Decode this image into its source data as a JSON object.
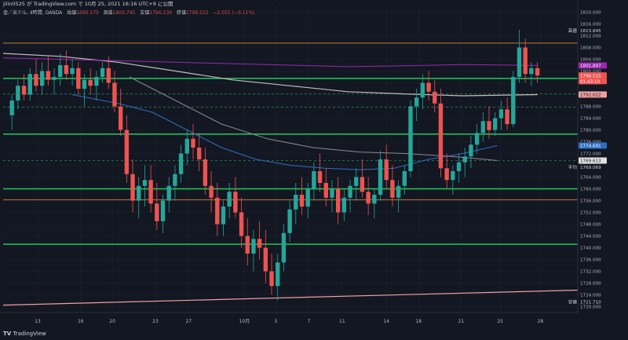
{
  "header": {
    "published": "jilin0525 が TradingView.com で 10月 25, 2021 16:16 UTC+9 に公開",
    "symbol": "金／米ドル, 4時間, OANDA",
    "open_label": "始値",
    "open": "1800.570",
    "high_label": "高値",
    "high": "1800.745",
    "low_label": "安値",
    "low": "1796.130",
    "close_label": "終値",
    "close": "1798.515",
    "change": "−2.055 (−0.11%)"
  },
  "footer": {
    "brand": "TradingView"
  },
  "colors": {
    "background": "#131722",
    "up": "#26a69a",
    "down": "#ef5350",
    "green_level": "#21c95c",
    "orange_level": "#c1773a",
    "purple_ma": "#9c27b0",
    "blue_ma": "#2f6fc2",
    "white_ma": "#c7bcbf",
    "trend": "#f0a0a0"
  },
  "chart_data": {
    "type": "candlestick",
    "symbol": "金／米ドル",
    "timeframe": "4時間",
    "ylim": [
      1718,
      1822
    ],
    "y_ticks": [
      "1820.000",
      "1816.000",
      "1812.000",
      "1808.000",
      "1804.000",
      "1800.000",
      "1796.000",
      "1792.000",
      "1788.000",
      "1784.000",
      "1780.000",
      "1776.000",
      "1772.000",
      "1768.000",
      "1764.000",
      "1760.000",
      "1756.000",
      "1752.000",
      "1748.000",
      "1744.000",
      "1740.000",
      "1736.000",
      "1732.000",
      "1728.000",
      "1724.000",
      "1720.000"
    ],
    "x_ticks": [
      {
        "label": "13",
        "pos": 0.06
      },
      {
        "label": "16",
        "pos": 0.135
      },
      {
        "label": "20",
        "pos": 0.19
      },
      {
        "label": "23",
        "pos": 0.265
      },
      {
        "label": "27",
        "pos": 0.323
      },
      {
        "label": "10月",
        "pos": 0.42
      },
      {
        "label": "5",
        "pos": 0.475
      },
      {
        "label": "7",
        "pos": 0.532
      },
      {
        "label": "11",
        "pos": 0.59
      },
      {
        "label": "14",
        "pos": 0.667
      },
      {
        "label": "18",
        "pos": 0.723
      },
      {
        "label": "21",
        "pos": 0.797
      },
      {
        "label": "25",
        "pos": 0.865
      },
      {
        "label": "28",
        "pos": 0.935
      }
    ],
    "price_tags": [
      {
        "label": "高値",
        "value": "1813.845",
        "y": 1813.845,
        "bg": "#131722",
        "fg": "#d1d4dc"
      },
      {
        "label": "",
        "value": "1801.897",
        "y": 1801.897,
        "bg": "#9c27b0",
        "fg": "#ffffff"
      },
      {
        "label": "",
        "value": "1798.515",
        "y": 1798.515,
        "bg": "#ef5350",
        "fg": "#ffffff"
      },
      {
        "label": "",
        "value": "01:43:10",
        "y": 1796.6,
        "bg": "#ef5350",
        "fg": "#ffffff"
      },
      {
        "label": "",
        "value": "1792.022",
        "y": 1792.022,
        "bg": "#f0a0a0",
        "fg": "#131722"
      },
      {
        "label": "",
        "value": "1774.691",
        "y": 1774.691,
        "bg": "#2f6fc2",
        "fg": "#ffffff"
      },
      {
        "label": "",
        "value": "1769.613",
        "y": 1769.613,
        "bg": "#e0e0e0",
        "fg": "#131722"
      },
      {
        "label": "平均",
        "value": "1769.069",
        "y": 1767.4,
        "bg": "#131722",
        "fg": "#d1d4dc"
      },
      {
        "label": "安値",
        "value": "1721.710",
        "y": 1721.71,
        "bg": "#131722",
        "fg": "#d1d4dc"
      }
    ],
    "levels": [
      {
        "y": 1809.5,
        "color": "#c1773a",
        "width": 1
      },
      {
        "y": 1797.5,
        "color": "#21c95c",
        "width": 1.5
      },
      {
        "y": 1792.3,
        "color": "#21c95c",
        "width": 0.6,
        "dash": "3,3"
      },
      {
        "y": 1787.7,
        "color": "#21c95c",
        "width": 0.6,
        "dash": "3,3"
      },
      {
        "y": 1778.6,
        "color": "#21c95c",
        "width": 1.5
      },
      {
        "y": 1769.6,
        "color": "#21c95c",
        "width": 0.6,
        "dash": "3,3"
      },
      {
        "y": 1760.0,
        "color": "#21c95c",
        "width": 1.5
      },
      {
        "y": 1756.3,
        "color": "#c1773a",
        "width": 1
      },
      {
        "y": 1741.2,
        "color": "#21c95c",
        "width": 1.5
      }
    ],
    "trendline": {
      "x0": 0.0,
      "y0": 1720.5,
      "x1": 1.0,
      "y1": 1725.6
    },
    "ma_purple": [
      [
        0.0,
        1804.5
      ],
      [
        0.1,
        1804
      ],
      [
        0.2,
        1803.5
      ],
      [
        0.3,
        1803
      ],
      [
        0.4,
        1802.5
      ],
      [
        0.5,
        1802
      ],
      [
        0.6,
        1801.5
      ],
      [
        0.7,
        1801.8
      ],
      [
        0.8,
        1802.2
      ],
      [
        0.93,
        1801.9
      ]
    ],
    "ma_white": [
      [
        0.0,
        1806
      ],
      [
        0.1,
        1805
      ],
      [
        0.2,
        1803
      ],
      [
        0.3,
        1800
      ],
      [
        0.4,
        1797
      ],
      [
        0.5,
        1795
      ],
      [
        0.6,
        1793
      ],
      [
        0.7,
        1792.2
      ],
      [
        0.8,
        1791.6
      ],
      [
        0.93,
        1792.0
      ]
    ],
    "ma_blue": [
      [
        0.12,
        1792
      ],
      [
        0.2,
        1789
      ],
      [
        0.26,
        1786
      ],
      [
        0.32,
        1780
      ],
      [
        0.38,
        1774
      ],
      [
        0.44,
        1770
      ],
      [
        0.5,
        1768
      ],
      [
        0.56,
        1767
      ],
      [
        0.62,
        1766.5
      ],
      [
        0.68,
        1767
      ],
      [
        0.74,
        1770
      ],
      [
        0.8,
        1772
      ],
      [
        0.86,
        1774.7
      ]
    ],
    "ma_white2": [
      [
        0.22,
        1798
      ],
      [
        0.3,
        1790
      ],
      [
        0.38,
        1782
      ],
      [
        0.46,
        1777
      ],
      [
        0.54,
        1774
      ],
      [
        0.62,
        1772.5
      ],
      [
        0.7,
        1772
      ],
      [
        0.78,
        1771
      ],
      [
        0.84,
        1770
      ],
      [
        0.86,
        1769.6
      ]
    ],
    "candles": [
      [
        1785,
        1792,
        1780,
        1790
      ],
      [
        1790,
        1797,
        1787,
        1795
      ],
      [
        1795,
        1799,
        1790,
        1792
      ],
      [
        1792,
        1801,
        1790,
        1799
      ],
      [
        1799,
        1804,
        1793,
        1795
      ],
      [
        1795,
        1803,
        1792,
        1800
      ],
      [
        1800,
        1805,
        1795,
        1797
      ],
      [
        1797,
        1801,
        1792,
        1798
      ],
      [
        1798,
        1806,
        1795,
        1802
      ],
      [
        1802,
        1807,
        1797,
        1799
      ],
      [
        1799,
        1804,
        1795,
        1801
      ],
      [
        1801,
        1803,
        1792,
        1794
      ],
      [
        1794,
        1799,
        1788,
        1797
      ],
      [
        1797,
        1801,
        1792,
        1795
      ],
      [
        1795,
        1800,
        1790,
        1798
      ],
      [
        1798,
        1803,
        1796,
        1801
      ],
      [
        1801,
        1805,
        1794,
        1796
      ],
      [
        1796,
        1800,
        1786,
        1788
      ],
      [
        1788,
        1794,
        1778,
        1780
      ],
      [
        1780,
        1785,
        1762,
        1765
      ],
      [
        1765,
        1770,
        1752,
        1756
      ],
      [
        1756,
        1764,
        1750,
        1761
      ],
      [
        1761,
        1768,
        1754,
        1763
      ],
      [
        1763,
        1768,
        1752,
        1755
      ],
      [
        1755,
        1762,
        1746,
        1749
      ],
      [
        1749,
        1758,
        1745,
        1756
      ],
      [
        1756,
        1764,
        1752,
        1761
      ],
      [
        1761,
        1768,
        1756,
        1765
      ],
      [
        1765,
        1775,
        1762,
        1772
      ],
      [
        1772,
        1780,
        1768,
        1777
      ],
      [
        1777,
        1782,
        1770,
        1774
      ],
      [
        1774,
        1779,
        1766,
        1770
      ],
      [
        1770,
        1774,
        1758,
        1761
      ],
      [
        1761,
        1766,
        1752,
        1757
      ],
      [
        1757,
        1762,
        1744,
        1748
      ],
      [
        1748,
        1756,
        1744,
        1754
      ],
      [
        1754,
        1762,
        1750,
        1759
      ],
      [
        1759,
        1764,
        1750,
        1752
      ],
      [
        1752,
        1757,
        1740,
        1744
      ],
      [
        1744,
        1750,
        1734,
        1738
      ],
      [
        1738,
        1746,
        1732,
        1743
      ],
      [
        1743,
        1749,
        1736,
        1740
      ],
      [
        1740,
        1746,
        1728,
        1732
      ],
      [
        1732,
        1738,
        1724,
        1727
      ],
      [
        1727,
        1738,
        1722,
        1735
      ],
      [
        1735,
        1748,
        1732,
        1745
      ],
      [
        1745,
        1756,
        1742,
        1753
      ],
      [
        1753,
        1762,
        1748,
        1758
      ],
      [
        1758,
        1764,
        1751,
        1754
      ],
      [
        1754,
        1762,
        1750,
        1760
      ],
      [
        1760,
        1769,
        1756,
        1766
      ],
      [
        1766,
        1772,
        1759,
        1762
      ],
      [
        1762,
        1767,
        1754,
        1757
      ],
      [
        1757,
        1763,
        1752,
        1760
      ],
      [
        1760,
        1764,
        1748,
        1752
      ],
      [
        1752,
        1760,
        1749,
        1757
      ],
      [
        1757,
        1763,
        1752,
        1761
      ],
      [
        1761,
        1767,
        1756,
        1764
      ],
      [
        1764,
        1770,
        1757,
        1759
      ],
      [
        1759,
        1764,
        1751,
        1755
      ],
      [
        1755,
        1760,
        1750,
        1758
      ],
      [
        1758,
        1773,
        1756,
        1770
      ],
      [
        1770,
        1775,
        1760,
        1763
      ],
      [
        1763,
        1768,
        1754,
        1757
      ],
      [
        1757,
        1763,
        1752,
        1761
      ],
      [
        1761,
        1768,
        1758,
        1766
      ],
      [
        1766,
        1790,
        1764,
        1788
      ],
      [
        1788,
        1794,
        1783,
        1791
      ],
      [
        1791,
        1799,
        1787,
        1796
      ],
      [
        1796,
        1800,
        1790,
        1793
      ],
      [
        1793,
        1797,
        1786,
        1789
      ],
      [
        1789,
        1794,
        1764,
        1767
      ],
      [
        1767,
        1772,
        1760,
        1763
      ],
      [
        1763,
        1768,
        1758,
        1766
      ],
      [
        1766,
        1772,
        1762,
        1769
      ],
      [
        1769,
        1774,
        1764,
        1771
      ],
      [
        1771,
        1778,
        1767,
        1775
      ],
      [
        1775,
        1782,
        1772,
        1779
      ],
      [
        1779,
        1786,
        1776,
        1783
      ],
      [
        1783,
        1788,
        1777,
        1780
      ],
      [
        1780,
        1786,
        1778,
        1784
      ],
      [
        1784,
        1790,
        1780,
        1787
      ],
      [
        1787,
        1791,
        1780,
        1782
      ],
      [
        1782,
        1800,
        1781,
        1798
      ],
      [
        1798,
        1814,
        1796,
        1808
      ],
      [
        1808,
        1811,
        1796,
        1799
      ],
      [
        1799,
        1803,
        1795,
        1801
      ],
      [
        1801,
        1803,
        1796,
        1798.5
      ]
    ]
  }
}
